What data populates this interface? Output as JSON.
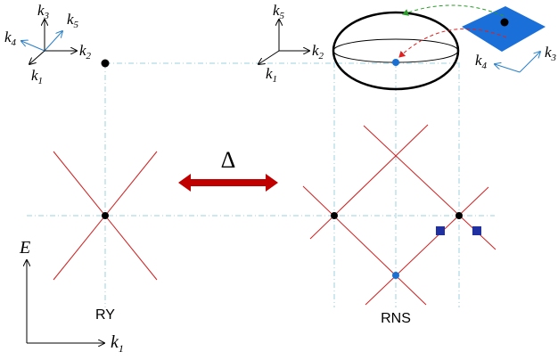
{
  "axes_left": {
    "k3": {
      "base": "k",
      "sub": "3"
    },
    "k5": {
      "base": "k",
      "sub": "5"
    },
    "k4": {
      "base": "k",
      "sub": "4"
    },
    "k2": {
      "base": "k",
      "sub": "2"
    },
    "k1": {
      "base": "k",
      "sub": "1"
    }
  },
  "axes_middle": {
    "k5": {
      "base": "k",
      "sub": "5"
    },
    "k2": {
      "base": "k",
      "sub": "2"
    },
    "k1": {
      "base": "k",
      "sub": "1"
    }
  },
  "axes_right": {
    "k4": {
      "base": "k",
      "sub": "4"
    },
    "k3": {
      "base": "k",
      "sub": "3"
    }
  },
  "gap_label": "Δ",
  "energy_label": "E",
  "momentum_label": {
    "base": "k",
    "sub": "1"
  },
  "left_caption": "RY",
  "right_caption": "RNS"
}
